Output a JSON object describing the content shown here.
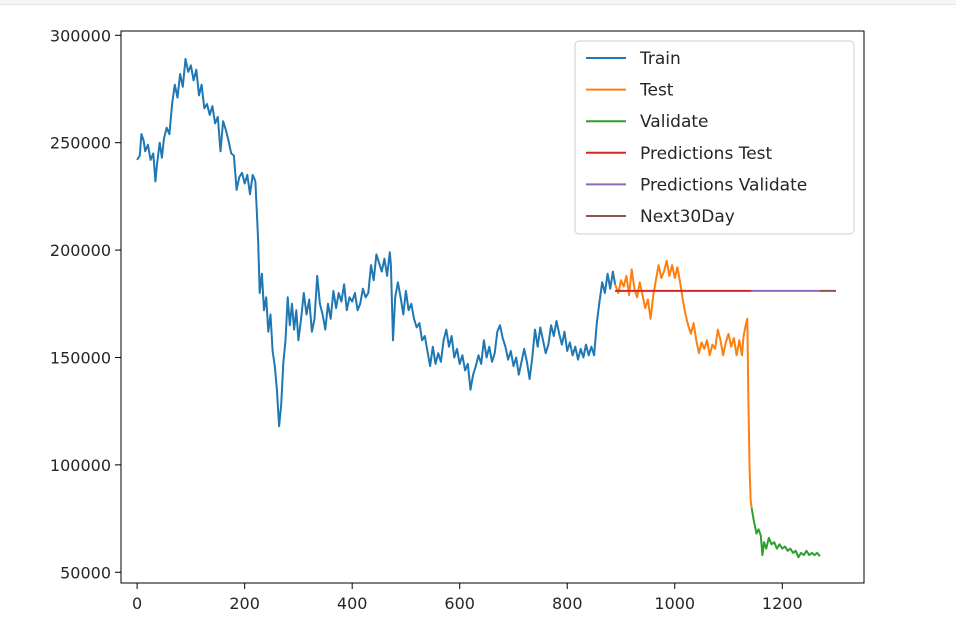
{
  "chart_data": {
    "type": "line",
    "title": "",
    "xlabel": "",
    "ylabel": "",
    "xlim": [
      -30,
      1352
    ],
    "ylim": [
      45000,
      302000
    ],
    "xticks": [
      0,
      200,
      400,
      600,
      800,
      1000,
      1200
    ],
    "yticks": [
      50000,
      100000,
      150000,
      200000,
      250000,
      300000
    ],
    "xtick_labels": [
      "0",
      "200",
      "400",
      "600",
      "800",
      "1000",
      "1200"
    ],
    "ytick_labels": [
      "50000",
      "100000",
      "150000",
      "200000",
      "250000",
      "300000"
    ],
    "grid": false,
    "legend_position": "top-right",
    "series": [
      {
        "name": "Train",
        "color": "#1f77b4",
        "points": [
          [
            0,
            242000
          ],
          [
            5,
            244000
          ],
          [
            8,
            254000
          ],
          [
            12,
            251000
          ],
          [
            15,
            246000
          ],
          [
            20,
            249000
          ],
          [
            25,
            242000
          ],
          [
            30,
            245000
          ],
          [
            34,
            232000
          ],
          [
            37,
            240000
          ],
          [
            42,
            250000
          ],
          [
            46,
            243000
          ],
          [
            50,
            252000
          ],
          [
            55,
            257000
          ],
          [
            60,
            254000
          ],
          [
            65,
            268000
          ],
          [
            70,
            277000
          ],
          [
            75,
            271000
          ],
          [
            80,
            282000
          ],
          [
            85,
            276000
          ],
          [
            90,
            289000
          ],
          [
            95,
            283000
          ],
          [
            100,
            286000
          ],
          [
            105,
            279000
          ],
          [
            110,
            284000
          ],
          [
            115,
            272000
          ],
          [
            120,
            277000
          ],
          [
            125,
            266000
          ],
          [
            130,
            268000
          ],
          [
            135,
            263000
          ],
          [
            140,
            267000
          ],
          [
            145,
            259000
          ],
          [
            150,
            262000
          ],
          [
            155,
            246000
          ],
          [
            160,
            260000
          ],
          [
            165,
            256000
          ],
          [
            170,
            251000
          ],
          [
            175,
            245000
          ],
          [
            180,
            244000
          ],
          [
            185,
            228000
          ],
          [
            190,
            234000
          ],
          [
            195,
            236000
          ],
          [
            200,
            231000
          ],
          [
            205,
            235000
          ],
          [
            210,
            226000
          ],
          [
            215,
            235000
          ],
          [
            220,
            232000
          ],
          [
            225,
            205000
          ],
          [
            228,
            180000
          ],
          [
            232,
            189000
          ],
          [
            236,
            172000
          ],
          [
            240,
            178000
          ],
          [
            244,
            162000
          ],
          [
            248,
            170000
          ],
          [
            252,
            153000
          ],
          [
            256,
            146000
          ],
          [
            260,
            135000
          ],
          [
            264,
            118000
          ],
          [
            268,
            128000
          ],
          [
            272,
            148000
          ],
          [
            276,
            158000
          ],
          [
            280,
            178000
          ],
          [
            284,
            165000
          ],
          [
            288,
            175000
          ],
          [
            292,
            163000
          ],
          [
            296,
            172000
          ],
          [
            300,
            158000
          ],
          [
            305,
            168000
          ],
          [
            310,
            180000
          ],
          [
            315,
            170000
          ],
          [
            320,
            177000
          ],
          [
            325,
            162000
          ],
          [
            330,
            168000
          ],
          [
            335,
            188000
          ],
          [
            340,
            175000
          ],
          [
            345,
            170000
          ],
          [
            350,
            163000
          ],
          [
            355,
            175000
          ],
          [
            360,
            168000
          ],
          [
            365,
            181000
          ],
          [
            370,
            173000
          ],
          [
            375,
            180000
          ],
          [
            380,
            176000
          ],
          [
            385,
            184000
          ],
          [
            390,
            172000
          ],
          [
            395,
            178000
          ],
          [
            400,
            176000
          ],
          [
            405,
            180000
          ],
          [
            410,
            172000
          ],
          [
            415,
            175000
          ],
          [
            420,
            182000
          ],
          [
            425,
            178000
          ],
          [
            430,
            180000
          ],
          [
            435,
            193000
          ],
          [
            440,
            186000
          ],
          [
            445,
            198000
          ],
          [
            450,
            194000
          ],
          [
            455,
            190000
          ],
          [
            460,
            196000
          ],
          [
            465,
            188000
          ],
          [
            470,
            199000
          ],
          [
            472,
            193000
          ],
          [
            476,
            158000
          ],
          [
            480,
            178000
          ],
          [
            485,
            185000
          ],
          [
            490,
            178000
          ],
          [
            495,
            170000
          ],
          [
            500,
            181000
          ],
          [
            505,
            172000
          ],
          [
            510,
            175000
          ],
          [
            515,
            168000
          ],
          [
            520,
            164000
          ],
          [
            525,
            166000
          ],
          [
            530,
            158000
          ],
          [
            535,
            160000
          ],
          [
            540,
            153000
          ],
          [
            545,
            146000
          ],
          [
            550,
            155000
          ],
          [
            555,
            147000
          ],
          [
            560,
            152000
          ],
          [
            565,
            148000
          ],
          [
            570,
            158000
          ],
          [
            575,
            163000
          ],
          [
            580,
            155000
          ],
          [
            585,
            160000
          ],
          [
            590,
            150000
          ],
          [
            595,
            154000
          ],
          [
            600,
            147000
          ],
          [
            605,
            151000
          ],
          [
            610,
            144000
          ],
          [
            615,
            147000
          ],
          [
            620,
            135000
          ],
          [
            625,
            142000
          ],
          [
            630,
            146000
          ],
          [
            635,
            151000
          ],
          [
            640,
            147000
          ],
          [
            645,
            158000
          ],
          [
            650,
            150000
          ],
          [
            655,
            155000
          ],
          [
            660,
            148000
          ],
          [
            665,
            152000
          ],
          [
            670,
            162000
          ],
          [
            675,
            165000
          ],
          [
            680,
            159000
          ],
          [
            685,
            155000
          ],
          [
            690,
            149000
          ],
          [
            695,
            153000
          ],
          [
            700,
            146000
          ],
          [
            705,
            150000
          ],
          [
            710,
            142000
          ],
          [
            715,
            148000
          ],
          [
            720,
            154000
          ],
          [
            725,
            148000
          ],
          [
            730,
            140000
          ],
          [
            735,
            150000
          ],
          [
            740,
            163000
          ],
          [
            745,
            155000
          ],
          [
            750,
            164000
          ],
          [
            755,
            158000
          ],
          [
            760,
            152000
          ],
          [
            765,
            156000
          ],
          [
            770,
            165000
          ],
          [
            775,
            160000
          ],
          [
            780,
            167000
          ],
          [
            785,
            161000
          ],
          [
            790,
            156000
          ],
          [
            795,
            162000
          ],
          [
            800,
            153000
          ],
          [
            805,
            157000
          ],
          [
            810,
            151000
          ],
          [
            815,
            155000
          ],
          [
            820,
            149000
          ],
          [
            825,
            154000
          ],
          [
            830,
            150000
          ],
          [
            835,
            156000
          ],
          [
            840,
            151000
          ],
          [
            845,
            155000
          ],
          [
            850,
            151000
          ],
          [
            855,
            166000
          ],
          [
            860,
            176000
          ],
          [
            865,
            185000
          ],
          [
            870,
            180000
          ],
          [
            875,
            189000
          ],
          [
            880,
            182000
          ],
          [
            885,
            190000
          ],
          [
            889,
            184000
          ]
        ]
      },
      {
        "name": "Test",
        "color": "#ff7f0e",
        "points": [
          [
            889,
            184000
          ],
          [
            895,
            180000
          ],
          [
            900,
            186000
          ],
          [
            905,
            183000
          ],
          [
            910,
            188000
          ],
          [
            915,
            179000
          ],
          [
            920,
            191000
          ],
          [
            925,
            182000
          ],
          [
            930,
            178000
          ],
          [
            935,
            185000
          ],
          [
            940,
            179000
          ],
          [
            945,
            173000
          ],
          [
            950,
            177000
          ],
          [
            955,
            168000
          ],
          [
            960,
            179000
          ],
          [
            965,
            186000
          ],
          [
            970,
            193000
          ],
          [
            975,
            187000
          ],
          [
            980,
            190000
          ],
          [
            985,
            195000
          ],
          [
            990,
            188000
          ],
          [
            995,
            193000
          ],
          [
            1000,
            187000
          ],
          [
            1005,
            192000
          ],
          [
            1010,
            185000
          ],
          [
            1015,
            177000
          ],
          [
            1020,
            170000
          ],
          [
            1025,
            165000
          ],
          [
            1030,
            161000
          ],
          [
            1035,
            166000
          ],
          [
            1040,
            158000
          ],
          [
            1045,
            152000
          ],
          [
            1050,
            157000
          ],
          [
            1055,
            154000
          ],
          [
            1060,
            158000
          ],
          [
            1065,
            151000
          ],
          [
            1070,
            156000
          ],
          [
            1075,
            154000
          ],
          [
            1080,
            163000
          ],
          [
            1085,
            158000
          ],
          [
            1090,
            151000
          ],
          [
            1095,
            157000
          ],
          [
            1100,
            161000
          ],
          [
            1105,
            155000
          ],
          [
            1110,
            159000
          ],
          [
            1115,
            151000
          ],
          [
            1120,
            158000
          ],
          [
            1125,
            151000
          ],
          [
            1128,
            160000
          ],
          [
            1132,
            165000
          ],
          [
            1135,
            168000
          ],
          [
            1137,
            130000
          ],
          [
            1139,
            100000
          ],
          [
            1141,
            84000
          ],
          [
            1143,
            80000
          ]
        ]
      },
      {
        "name": "Validate",
        "color": "#2ca02c",
        "points": [
          [
            1143,
            80000
          ],
          [
            1147,
            74000
          ],
          [
            1152,
            68000
          ],
          [
            1156,
            70000
          ],
          [
            1160,
            67000
          ],
          [
            1163,
            58000
          ],
          [
            1166,
            64000
          ],
          [
            1170,
            61000
          ],
          [
            1175,
            66000
          ],
          [
            1180,
            63000
          ],
          [
            1185,
            64000
          ],
          [
            1190,
            61000
          ],
          [
            1195,
            63000
          ],
          [
            1200,
            61000
          ],
          [
            1205,
            62000
          ],
          [
            1210,
            60000
          ],
          [
            1215,
            61000
          ],
          [
            1220,
            59000
          ],
          [
            1225,
            60000
          ],
          [
            1230,
            57000
          ],
          [
            1235,
            59000
          ],
          [
            1240,
            58000
          ],
          [
            1245,
            60000
          ],
          [
            1250,
            58000
          ],
          [
            1255,
            59000
          ],
          [
            1260,
            58000
          ],
          [
            1265,
            59000
          ],
          [
            1270,
            57500
          ]
        ]
      },
      {
        "name": "Predictions Test",
        "color": "#d62728",
        "points": [
          [
            889,
            181000
          ],
          [
            1143,
            181000
          ]
        ]
      },
      {
        "name": "Predictions Validate",
        "color": "#9467bd",
        "points": [
          [
            1143,
            181000
          ],
          [
            1270,
            181000
          ]
        ]
      },
      {
        "name": "Next30Day",
        "color": "#8c564b",
        "points": [
          [
            1270,
            181000
          ],
          [
            1300,
            181000
          ]
        ]
      }
    ]
  }
}
